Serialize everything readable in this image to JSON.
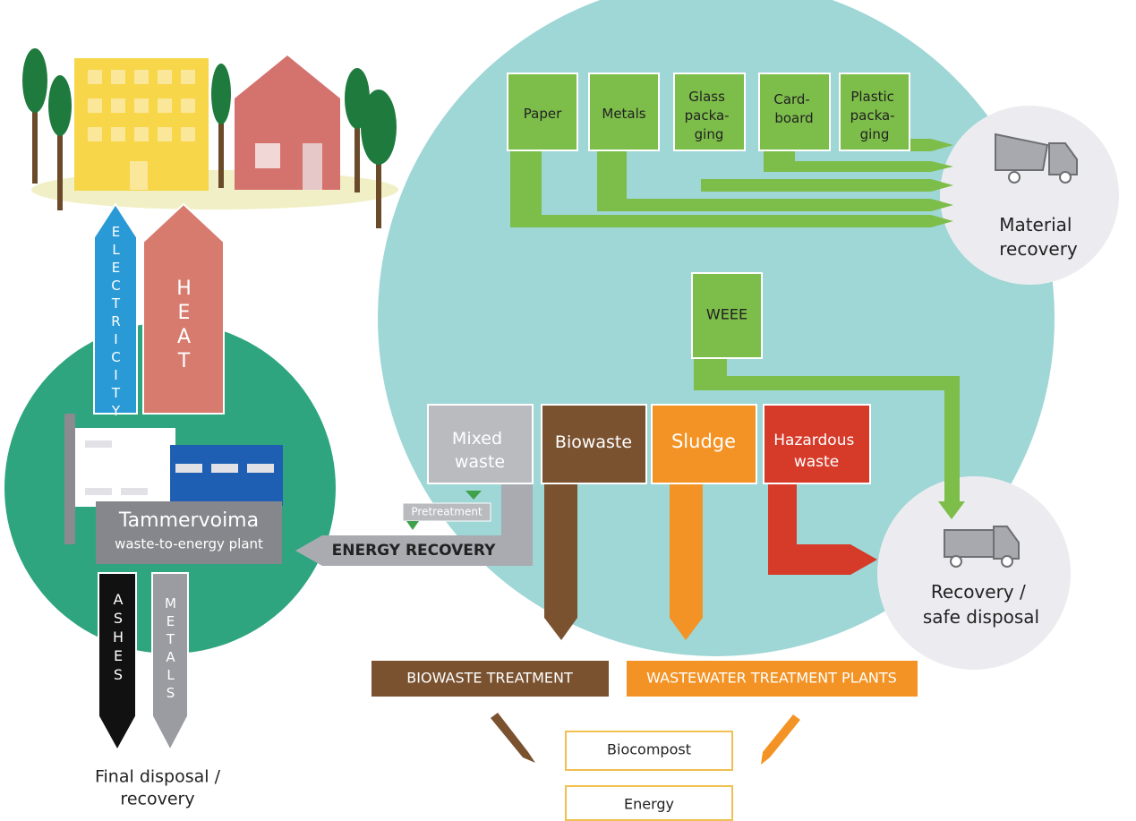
{
  "town": {},
  "outputs": {
    "electricity": "ELECTRICITY",
    "heat": "HEAT"
  },
  "plant": {
    "name": "Tammervoima",
    "subtitle": "waste-to-energy plant"
  },
  "residues": {
    "ashes": "ASHES",
    "metals": "METALS",
    "destination": [
      "Final disposal /",
      "recovery"
    ]
  },
  "fractions": [
    {
      "label": [
        "Paper"
      ]
    },
    {
      "label": [
        "Metals"
      ]
    },
    {
      "label": [
        "Glass",
        "packa-",
        "ging"
      ]
    },
    {
      "label": [
        "Card-",
        "board"
      ]
    },
    {
      "label": [
        "Plastic",
        "packa-",
        "ging"
      ]
    }
  ],
  "material_recovery": [
    "Material",
    "recovery"
  ],
  "weee": "WEEE",
  "streams": [
    {
      "label": [
        "Mixed",
        "waste"
      ]
    },
    {
      "label": [
        "Biowaste"
      ]
    },
    {
      "label": [
        "Sludge"
      ]
    },
    {
      "label": [
        "Hazardous",
        "waste"
      ]
    }
  ],
  "pretreatment": "Pretreatment",
  "energy_recovery": "ENERGY RECOVERY",
  "safe_disposal": [
    "Recovery /",
    "safe disposal"
  ],
  "treatments": {
    "biowaste": "BIOWASTE TREATMENT",
    "wastewater": "WASTEWATER TREATMENT PLANTS"
  },
  "products": [
    "Biocompost",
    "Energy"
  ]
}
